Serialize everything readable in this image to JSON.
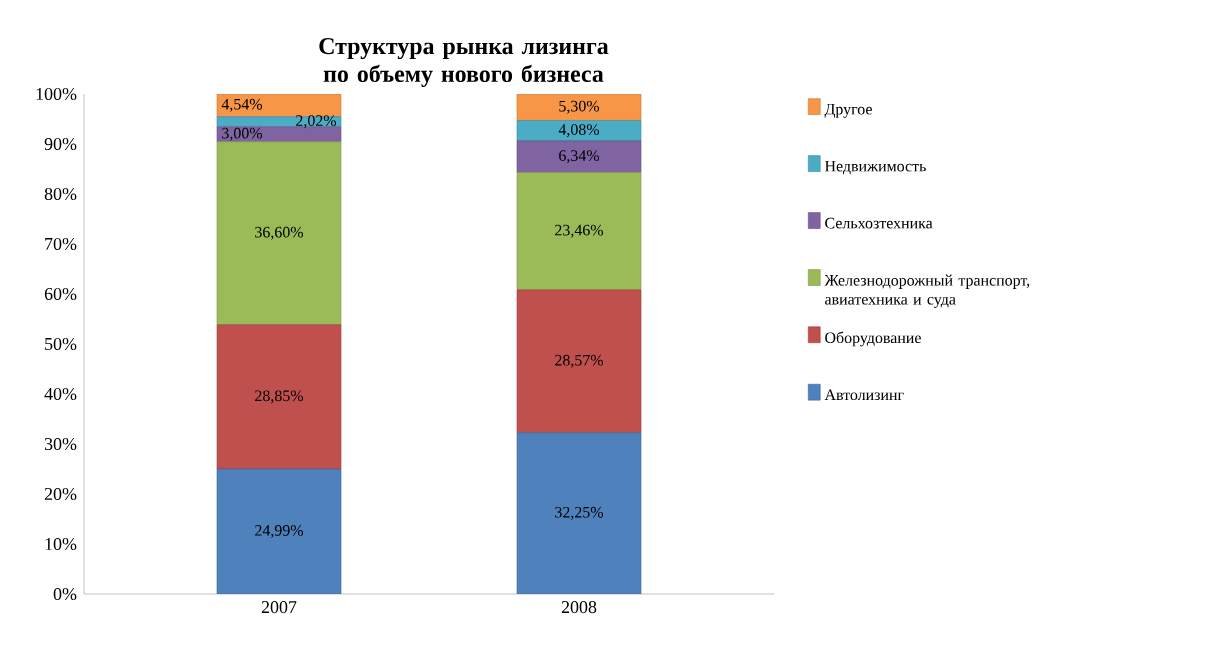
{
  "chart_data": {
    "type": "bar",
    "stacked": true,
    "title": "Структура рынка лизинга по объему нового бизнеса",
    "categories": [
      "2007",
      "2008"
    ],
    "series": [
      {
        "name": "Автолизинг",
        "color": "#4f81bd",
        "values": [
          24.99,
          32.25
        ],
        "value_labels": [
          "24,99%",
          "32,25%"
        ]
      },
      {
        "name": "Оборудование",
        "color": "#c0504d",
        "values": [
          28.85,
          28.57
        ],
        "value_labels": [
          "28,85%",
          "28,57%"
        ]
      },
      {
        "name": "Железнодорожный транспорт, авиатехника и суда",
        "color": "#9bbb59",
        "values": [
          36.6,
          23.46
        ],
        "value_labels": [
          "36,60%",
          "23,46%"
        ]
      },
      {
        "name": "Сельхозтехника",
        "color": "#8064a2",
        "values": [
          3.0,
          6.34
        ],
        "value_labels": [
          "3,00%",
          "6,34%"
        ]
      },
      {
        "name": "Недвижимость",
        "color": "#4bacc6",
        "values": [
          2.02,
          4.08
        ],
        "value_labels": [
          "2,02%",
          "4,08%"
        ]
      },
      {
        "name": "Другое",
        "color": "#f79646",
        "values": [
          4.54,
          5.3
        ],
        "value_labels": [
          "4,54%",
          "5,30%"
        ]
      }
    ],
    "ylim": [
      0,
      100
    ],
    "yticks": [
      {
        "value": 0,
        "label": "0%"
      },
      {
        "value": 10,
        "label": "10%"
      },
      {
        "value": 20,
        "label": "20%"
      },
      {
        "value": 30,
        "label": "30%"
      },
      {
        "value": 40,
        "label": "40%"
      },
      {
        "value": 50,
        "label": "50%"
      },
      {
        "value": 60,
        "label": "60%"
      },
      {
        "value": 70,
        "label": "70%"
      },
      {
        "value": 80,
        "label": "80%"
      },
      {
        "value": 90,
        "label": "90%"
      },
      {
        "value": 100,
        "label": "100%"
      }
    ],
    "legend": "right"
  }
}
